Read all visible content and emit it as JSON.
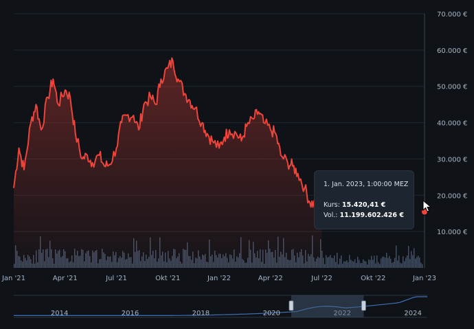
{
  "chart_data": {
    "type": "area",
    "title": "",
    "price_axis": {
      "ticks": [
        "10.000 €",
        "20.000 €",
        "30.000 €",
        "40.000 €",
        "50.000 €",
        "60.000 €",
        "70.000 €"
      ],
      "tick_values": [
        10000,
        20000,
        30000,
        40000,
        50000,
        60000,
        70000
      ],
      "range": [
        0,
        70000
      ]
    },
    "time_axis": {
      "ticks": [
        "Jan '21",
        "Apr '21",
        "Jul '21",
        "Okt '21",
        "Jan '22",
        "Apr '22",
        "Jul '22",
        "Okt '22",
        "Jan '23"
      ],
      "tick_months": [
        0,
        3,
        6,
        9,
        12,
        15,
        18,
        21,
        24
      ]
    },
    "series": [
      {
        "name": "Kurs",
        "unit": "€",
        "month_index": [
          0,
          0.3,
          0.6,
          1,
          1.3,
          1.6,
          2,
          2.3,
          2.6,
          3,
          3.3,
          3.6,
          4,
          4.3,
          4.6,
          5,
          5.3,
          5.6,
          6,
          6.3,
          6.6,
          7,
          7.3,
          7.6,
          8,
          8.3,
          8.6,
          9,
          9.3,
          9.6,
          10,
          10.3,
          10.6,
          11,
          11.3,
          11.6,
          12,
          12.3,
          12.6,
          13,
          13.3,
          13.6,
          14,
          14.3,
          14.6,
          15,
          15.3,
          15.6,
          16,
          16.3,
          16.6,
          17,
          17.3,
          17.6,
          18
        ],
        "values": [
          22000,
          33000,
          27000,
          40000,
          45000,
          38000,
          47000,
          52000,
          45000,
          49000,
          47000,
          37000,
          30000,
          31000,
          29000,
          31000,
          28000,
          28500,
          33000,
          40000,
          42000,
          42000,
          38000,
          45000,
          47000,
          45000,
          52000,
          55000,
          57000,
          52000,
          48000,
          46000,
          44000,
          40000,
          37000,
          35000,
          33000,
          36000,
          38000,
          37000,
          35000,
          39000,
          41000,
          43000,
          40000,
          38000,
          37000,
          31000,
          29000,
          28000,
          26000,
          22000,
          18000,
          17500,
          17000
        ]
      },
      {
        "name": "Vol.",
        "unit": "€",
        "display": "volume bars"
      }
    ],
    "last_point_month": 24,
    "last_point_value": 15420.41
  },
  "navigator": {
    "ticks": [
      "2014",
      "2016",
      "2018",
      "2020",
      "2022",
      "2024"
    ],
    "tick_years": [
      2014,
      2016,
      2018,
      2020,
      2022,
      2024
    ],
    "selection_years": [
      2020.75,
      2022.8
    ]
  },
  "tooltip": {
    "title": "1. Jan. 2023, 1:00:00 MEZ",
    "kurs_label": "Kurs:",
    "kurs_value": "15.420,41 €",
    "vol_label": "Vol.:",
    "vol_value": "11.199.602.426 €"
  },
  "colors": {
    "background": "#0f1318",
    "line": "#f0443a",
    "grid": "#1e2730",
    "axis_text": "#a7b6c8",
    "volume": "#5b6a7c",
    "navigator_line": "#3f6fb6",
    "navigator_mask": "#4a5d78"
  }
}
